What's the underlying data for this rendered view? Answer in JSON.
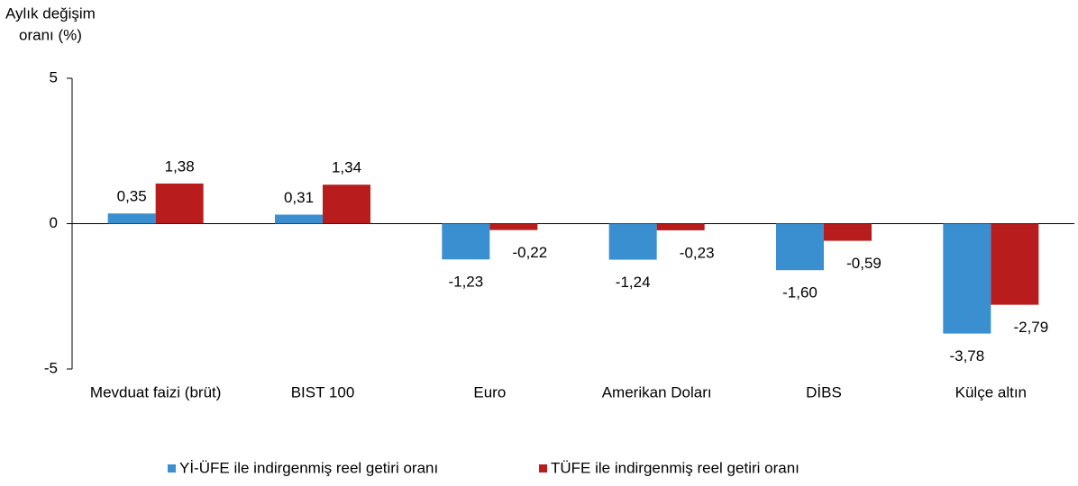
{
  "chart_data": {
    "type": "bar",
    "y_label": [
      "Aylık değişim",
      "oranı (%)"
    ],
    "categories": [
      "Mevduat faizi (brüt)",
      "BIST 100",
      "Euro",
      "Amerikan Doları",
      "DİBS",
      "Külçe altın"
    ],
    "series": [
      {
        "name": "Yİ-ÜFE ile indirgenmiş reel getiri oranı",
        "color": "#3a8fd0",
        "values": [
          0.35,
          0.31,
          -1.23,
          -1.24,
          -1.6,
          -3.78
        ],
        "value_labels": [
          "0,35",
          "0,31",
          "-1,23",
          "-1,24",
          "-1,60",
          "-3,78"
        ]
      },
      {
        "name": "TÜFE ile indirgenmiş reel getiri oranı",
        "color": "#b81c1c",
        "values": [
          1.38,
          1.34,
          -0.22,
          -0.23,
          -0.59,
          -2.79
        ],
        "value_labels": [
          "1,38",
          "1,34",
          "-0,22",
          "-0,23",
          "-0,59",
          "-2,79"
        ]
      }
    ],
    "ylim": [
      -5,
      5
    ],
    "yticks": [
      5,
      0,
      -5
    ],
    "grid": false,
    "legend": "bottom"
  }
}
